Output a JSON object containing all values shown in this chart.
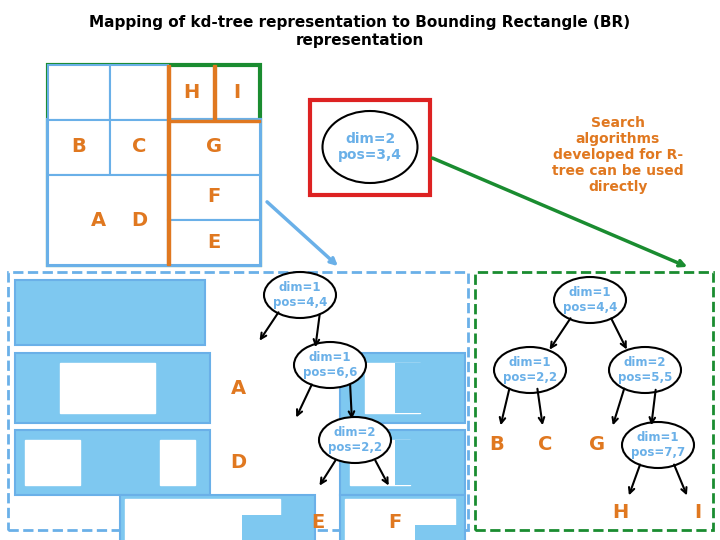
{
  "title_line1": "Mapping of kd-tree representation to Bounding Rectangle (BR)",
  "title_line2": "representation",
  "title_fontsize": 11,
  "blue": "#6ab0e8",
  "blue_fill": "#7ec8f0",
  "orange": "#e07820",
  "green": "#1a8c30",
  "red": "#dd2222",
  "search_text": "Search\nalgorithms\ndeveloped for R-\ntree can be used\ndirectly"
}
